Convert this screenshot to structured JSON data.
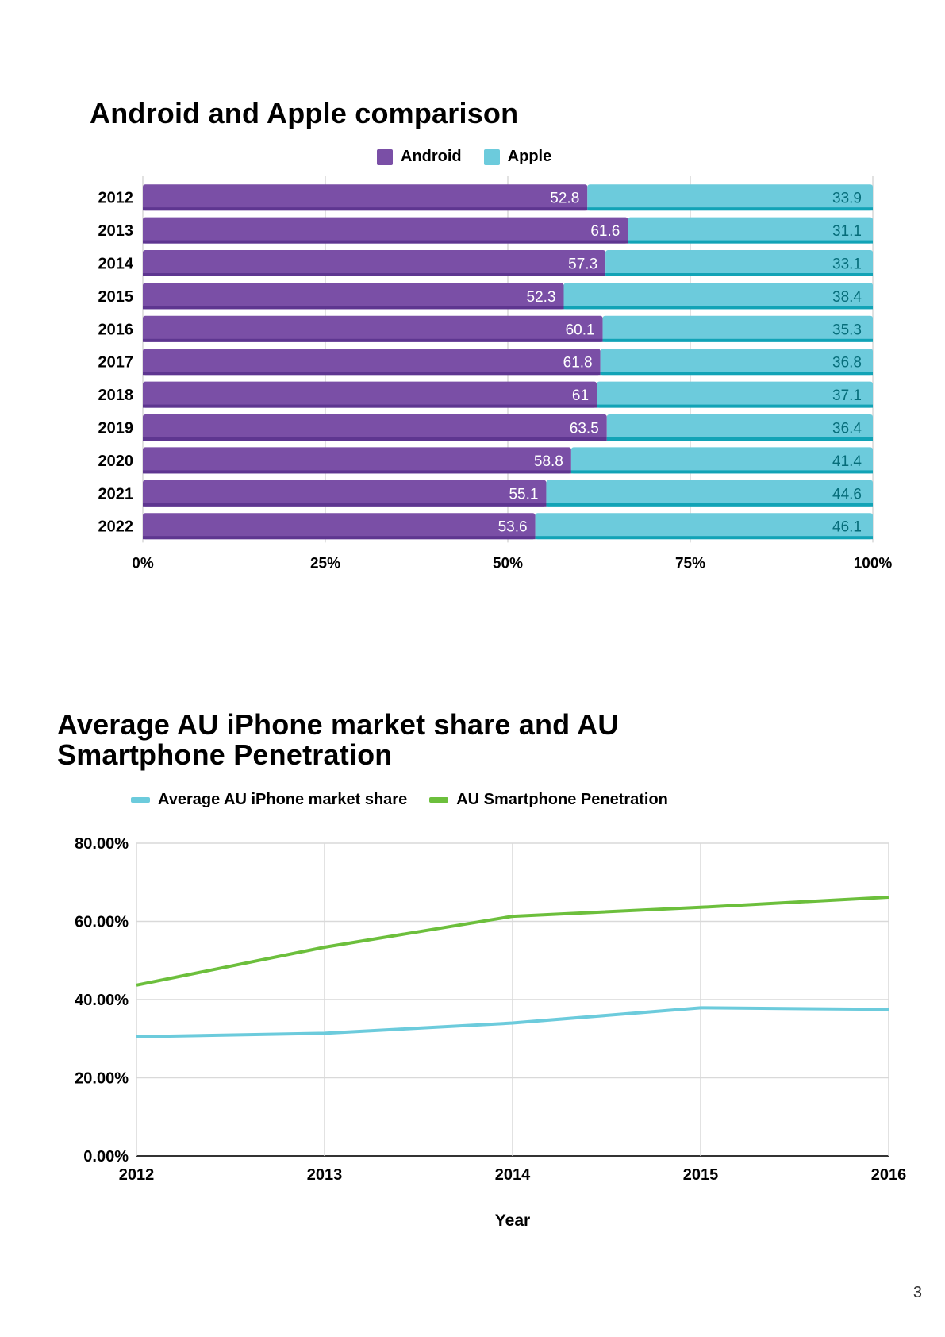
{
  "page_number": "3",
  "colors": {
    "android": "#7a4fa6",
    "android_edge": "#5e3690",
    "apple": "#6ccbdc",
    "apple_edge": "#12a3b6",
    "iphone_line": "#6ccbdc",
    "penetration_line": "#6cbf3c",
    "grid": "#d9d9d9",
    "axis": "#333333",
    "android_label": "#ffffff",
    "apple_label": "#066d7a"
  },
  "chart_data": [
    {
      "type": "bar",
      "orientation": "horizontal",
      "stacked": "percent",
      "title": "Android and Apple comparison",
      "categories": [
        "2012",
        "2013",
        "2014",
        "2015",
        "2016",
        "2017",
        "2018",
        "2019",
        "2020",
        "2021",
        "2022"
      ],
      "series": [
        {
          "name": "Android",
          "values": [
            52.8,
            61.6,
            57.3,
            52.3,
            60.1,
            61.8,
            61,
            63.5,
            58.8,
            55.1,
            53.6
          ]
        },
        {
          "name": "Apple",
          "values": [
            33.9,
            31.1,
            33.1,
            38.4,
            35.3,
            36.8,
            37.1,
            36.4,
            41.4,
            44.6,
            46.1
          ]
        }
      ],
      "x_ticks": [
        "0%",
        "25%",
        "50%",
        "75%",
        "100%"
      ],
      "xlim": [
        0,
        100
      ],
      "legend": "top",
      "grid": true,
      "data_labels": true
    },
    {
      "type": "line",
      "title": "Average AU iPhone market share and AU Smartphone Penetration",
      "x": [
        "2012",
        "2013",
        "2014",
        "2015",
        "2016"
      ],
      "series": [
        {
          "name": "Average AU iPhone market share",
          "values": [
            30.5,
            31.4,
            34.0,
            37.9,
            37.5
          ]
        },
        {
          "name": "AU Smartphone Penetration",
          "values": [
            43.7,
            53.4,
            61.3,
            63.6,
            66.2
          ]
        }
      ],
      "y_ticks": [
        "0.00%",
        "20.00%",
        "40.00%",
        "60.00%",
        "80.00%"
      ],
      "ylim": [
        0,
        80
      ],
      "xlabel": "Year",
      "ylabel": "",
      "legend": "top",
      "grid": true
    }
  ]
}
